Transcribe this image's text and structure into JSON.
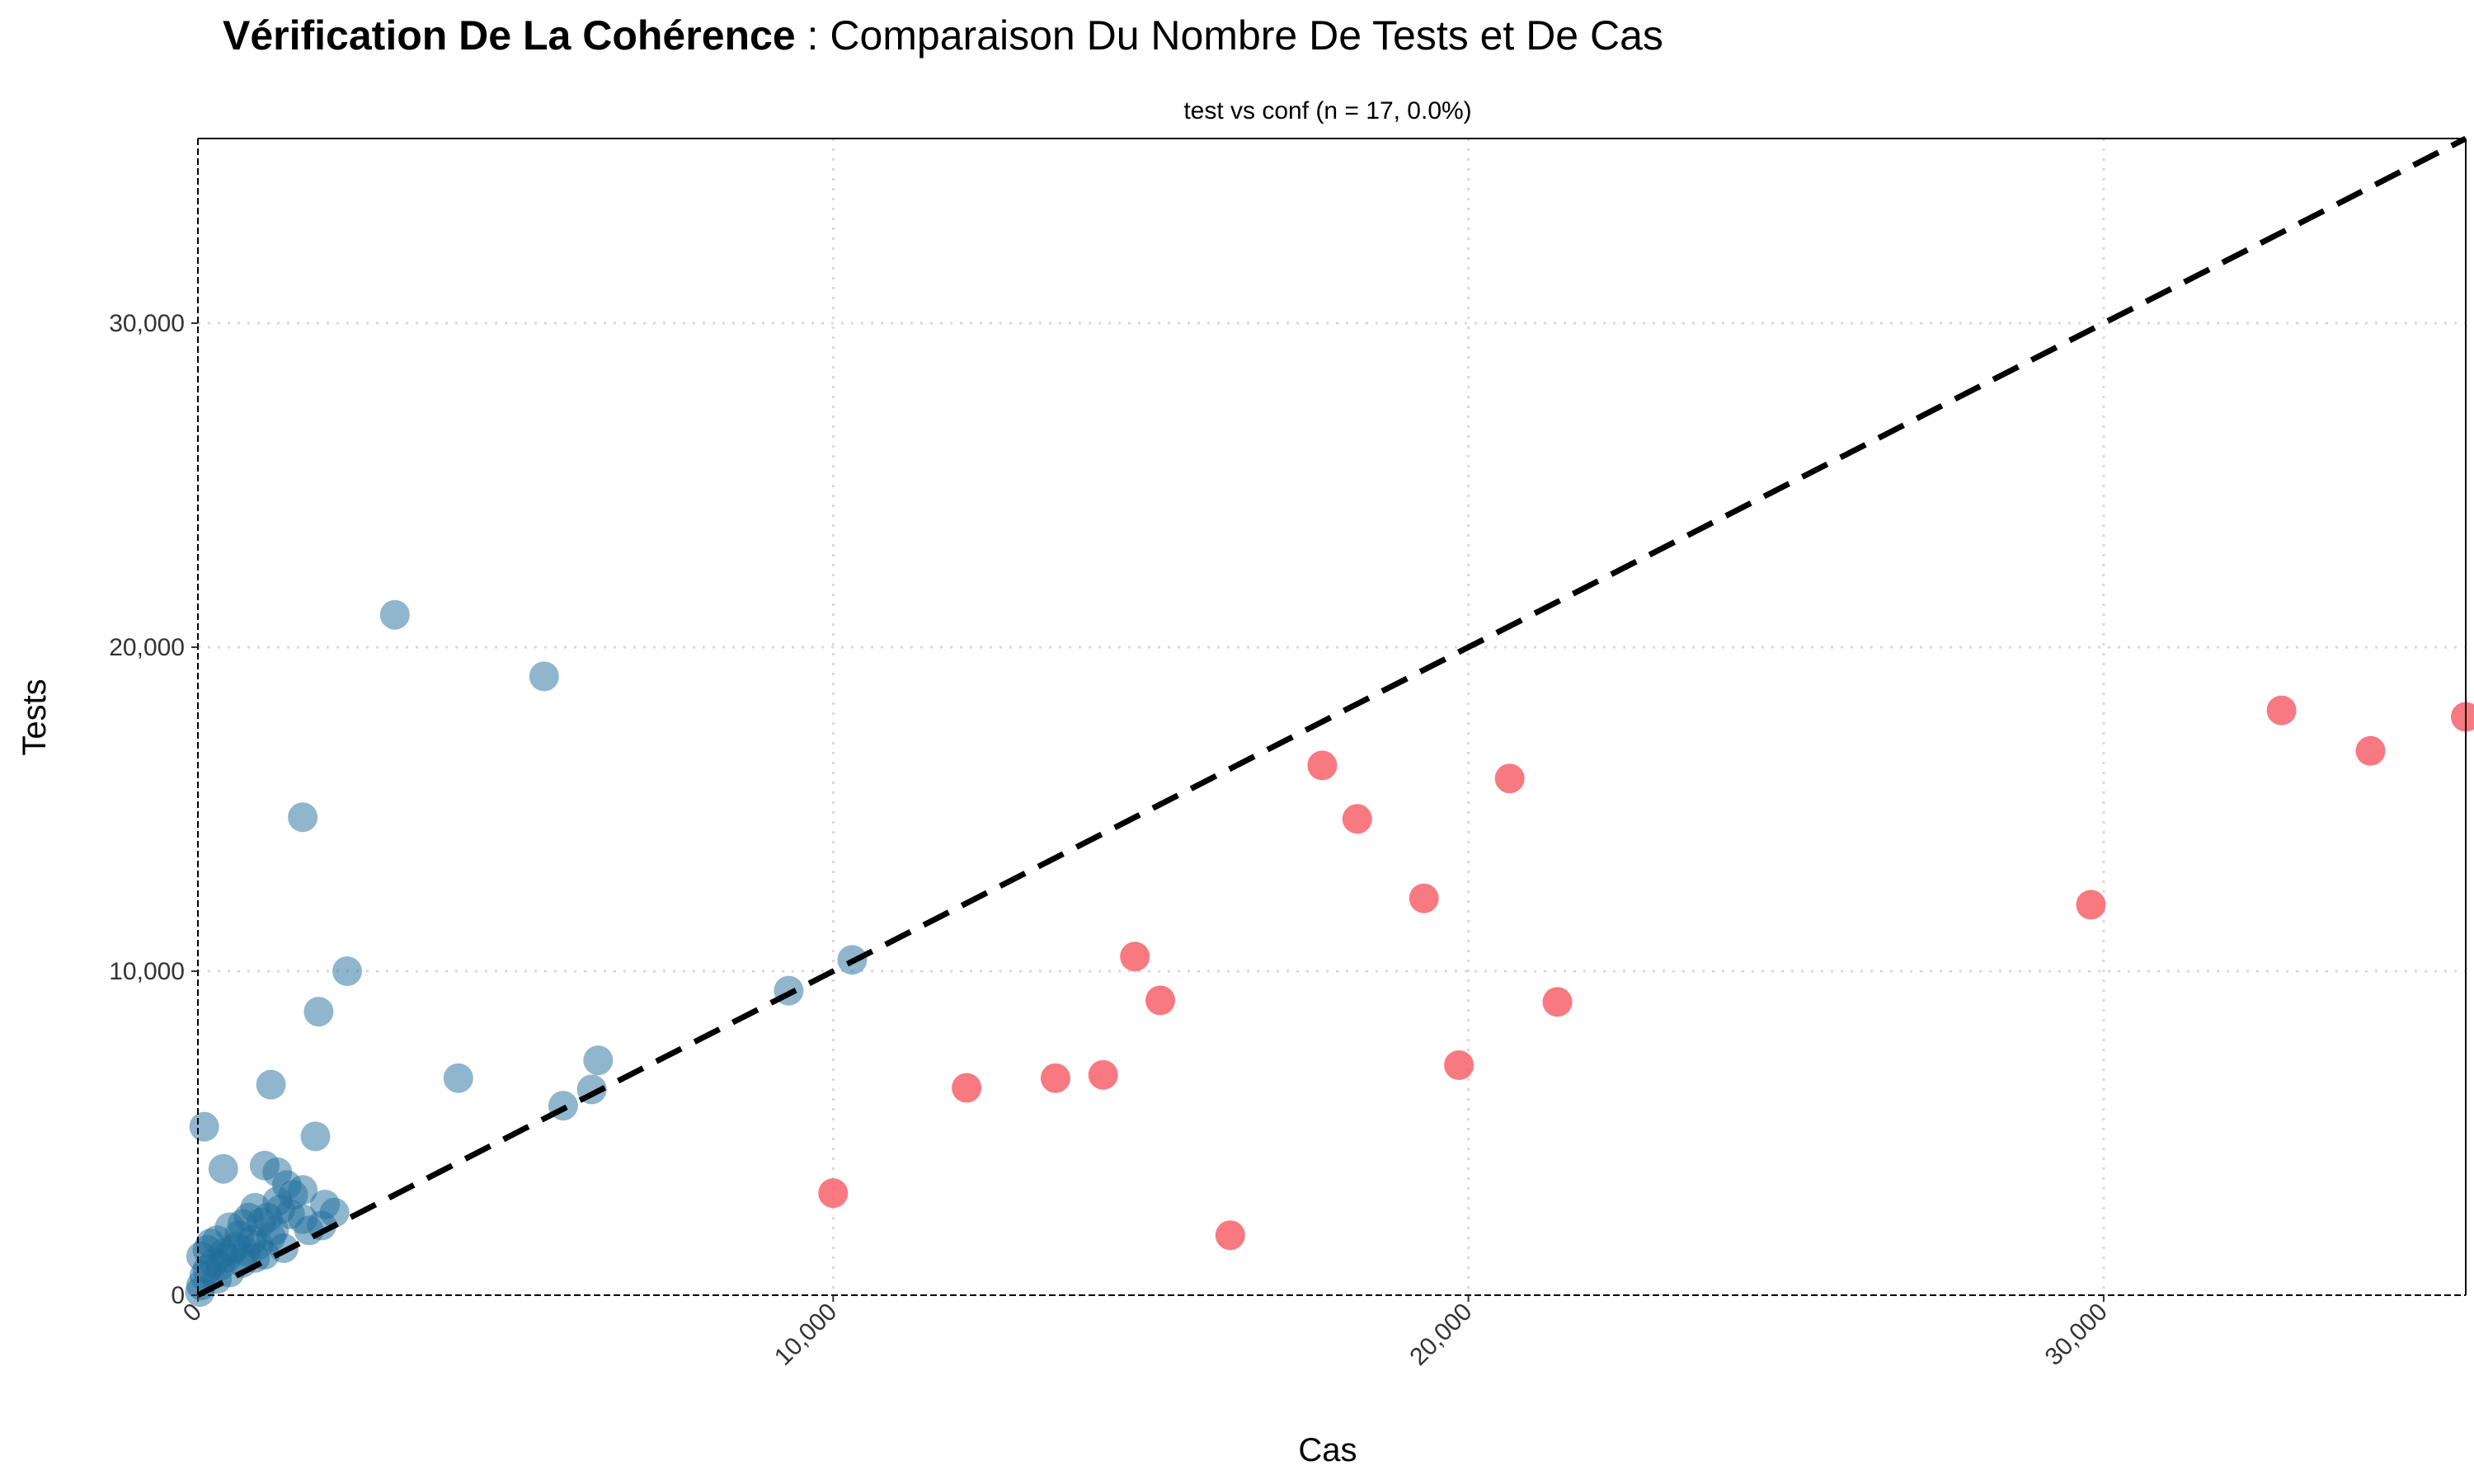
{
  "title": {
    "bold_part": "Vérification De La Cohérence",
    "rest_part": " : Comparaison Du Nombre De Tests et De Cas"
  },
  "colors": {
    "consistent": "#1f6e9c",
    "inconsistent": "#f8626b",
    "diagonal": "#000000",
    "grid": "#d9d9d9"
  },
  "chart_data": {
    "type": "scatter",
    "title": "Vérification De La Cohérence : Comparaison Du Nombre De Tests et De Cas",
    "subtitle": "test vs conf (n = 17, 0.0%)",
    "xlabel": "Cas",
    "ylabel": "Tests",
    "xlim": [
      0,
      35700
    ],
    "ylim": [
      0,
      35700
    ],
    "xticks": [
      0,
      10000,
      20000,
      30000
    ],
    "yticks": [
      0,
      10000,
      20000,
      30000
    ],
    "xtick_labels": [
      "0",
      "10,000",
      "20,000",
      "30,000"
    ],
    "ytick_labels": [
      "0",
      "10,000",
      "20,000",
      "30,000"
    ],
    "grid": true,
    "reference_line": "y = x (dashed)",
    "series": [
      {
        "color": "#1f6e9c",
        "opacity": 0.5,
        "points": [
          [
            3100,
            21000
          ],
          [
            5450,
            19100
          ],
          [
            1650,
            14750
          ],
          [
            2350,
            10000
          ],
          [
            1900,
            8750
          ],
          [
            9300,
            9400
          ],
          [
            10300,
            10350
          ],
          [
            6300,
            7250
          ],
          [
            6200,
            6350
          ],
          [
            5750,
            5850
          ],
          [
            4100,
            6700
          ],
          [
            1150,
            6500
          ],
          [
            1850,
            4900
          ],
          [
            100,
            5200
          ],
          [
            400,
            3900
          ],
          [
            1050,
            4000
          ],
          [
            1250,
            3800
          ],
          [
            1400,
            3400
          ],
          [
            1650,
            3250
          ],
          [
            1500,
            3100
          ],
          [
            2000,
            2800
          ],
          [
            2150,
            2550
          ],
          [
            1950,
            2150
          ],
          [
            1300,
            2650
          ],
          [
            1100,
            2400
          ],
          [
            900,
            2700
          ],
          [
            700,
            2200
          ],
          [
            500,
            2100
          ],
          [
            1200,
            2000
          ],
          [
            850,
            1700
          ],
          [
            600,
            1500
          ],
          [
            400,
            1300
          ],
          [
            300,
            1700
          ],
          [
            250,
            1000
          ],
          [
            150,
            800
          ],
          [
            100,
            600
          ],
          [
            50,
            300
          ],
          [
            30,
            100
          ],
          [
            200,
            1600
          ],
          [
            350,
            900
          ],
          [
            450,
            1150
          ],
          [
            550,
            1400
          ],
          [
            650,
            1850
          ],
          [
            750,
            1350
          ],
          [
            950,
            1550
          ],
          [
            1050,
            1250
          ],
          [
            1350,
            1450
          ],
          [
            800,
            2400
          ],
          [
            1000,
            2250
          ],
          [
            1150,
            1800
          ],
          [
            700,
            1000
          ],
          [
            500,
            700
          ],
          [
            300,
            500
          ],
          [
            150,
            1400
          ],
          [
            50,
            1200
          ],
          [
            1250,
            2900
          ],
          [
            1450,
            2500
          ],
          [
            1650,
            2350
          ],
          [
            1750,
            2000
          ],
          [
            900,
            1150
          ]
        ]
      },
      {
        "color": "#f8626b",
        "opacity": 0.85,
        "points": [
          [
            10000,
            3150
          ],
          [
            12100,
            6400
          ],
          [
            13500,
            6700
          ],
          [
            14250,
            6800
          ],
          [
            14750,
            10450
          ],
          [
            15150,
            9100
          ],
          [
            16250,
            1850
          ],
          [
            17700,
            16350
          ],
          [
            18250,
            14700
          ],
          [
            19300,
            12250
          ],
          [
            19850,
            7100
          ],
          [
            20650,
            15950
          ],
          [
            21400,
            9050
          ],
          [
            29800,
            12050
          ],
          [
            32800,
            18050
          ],
          [
            34200,
            16800
          ],
          [
            35700,
            17850
          ]
        ]
      }
    ]
  }
}
